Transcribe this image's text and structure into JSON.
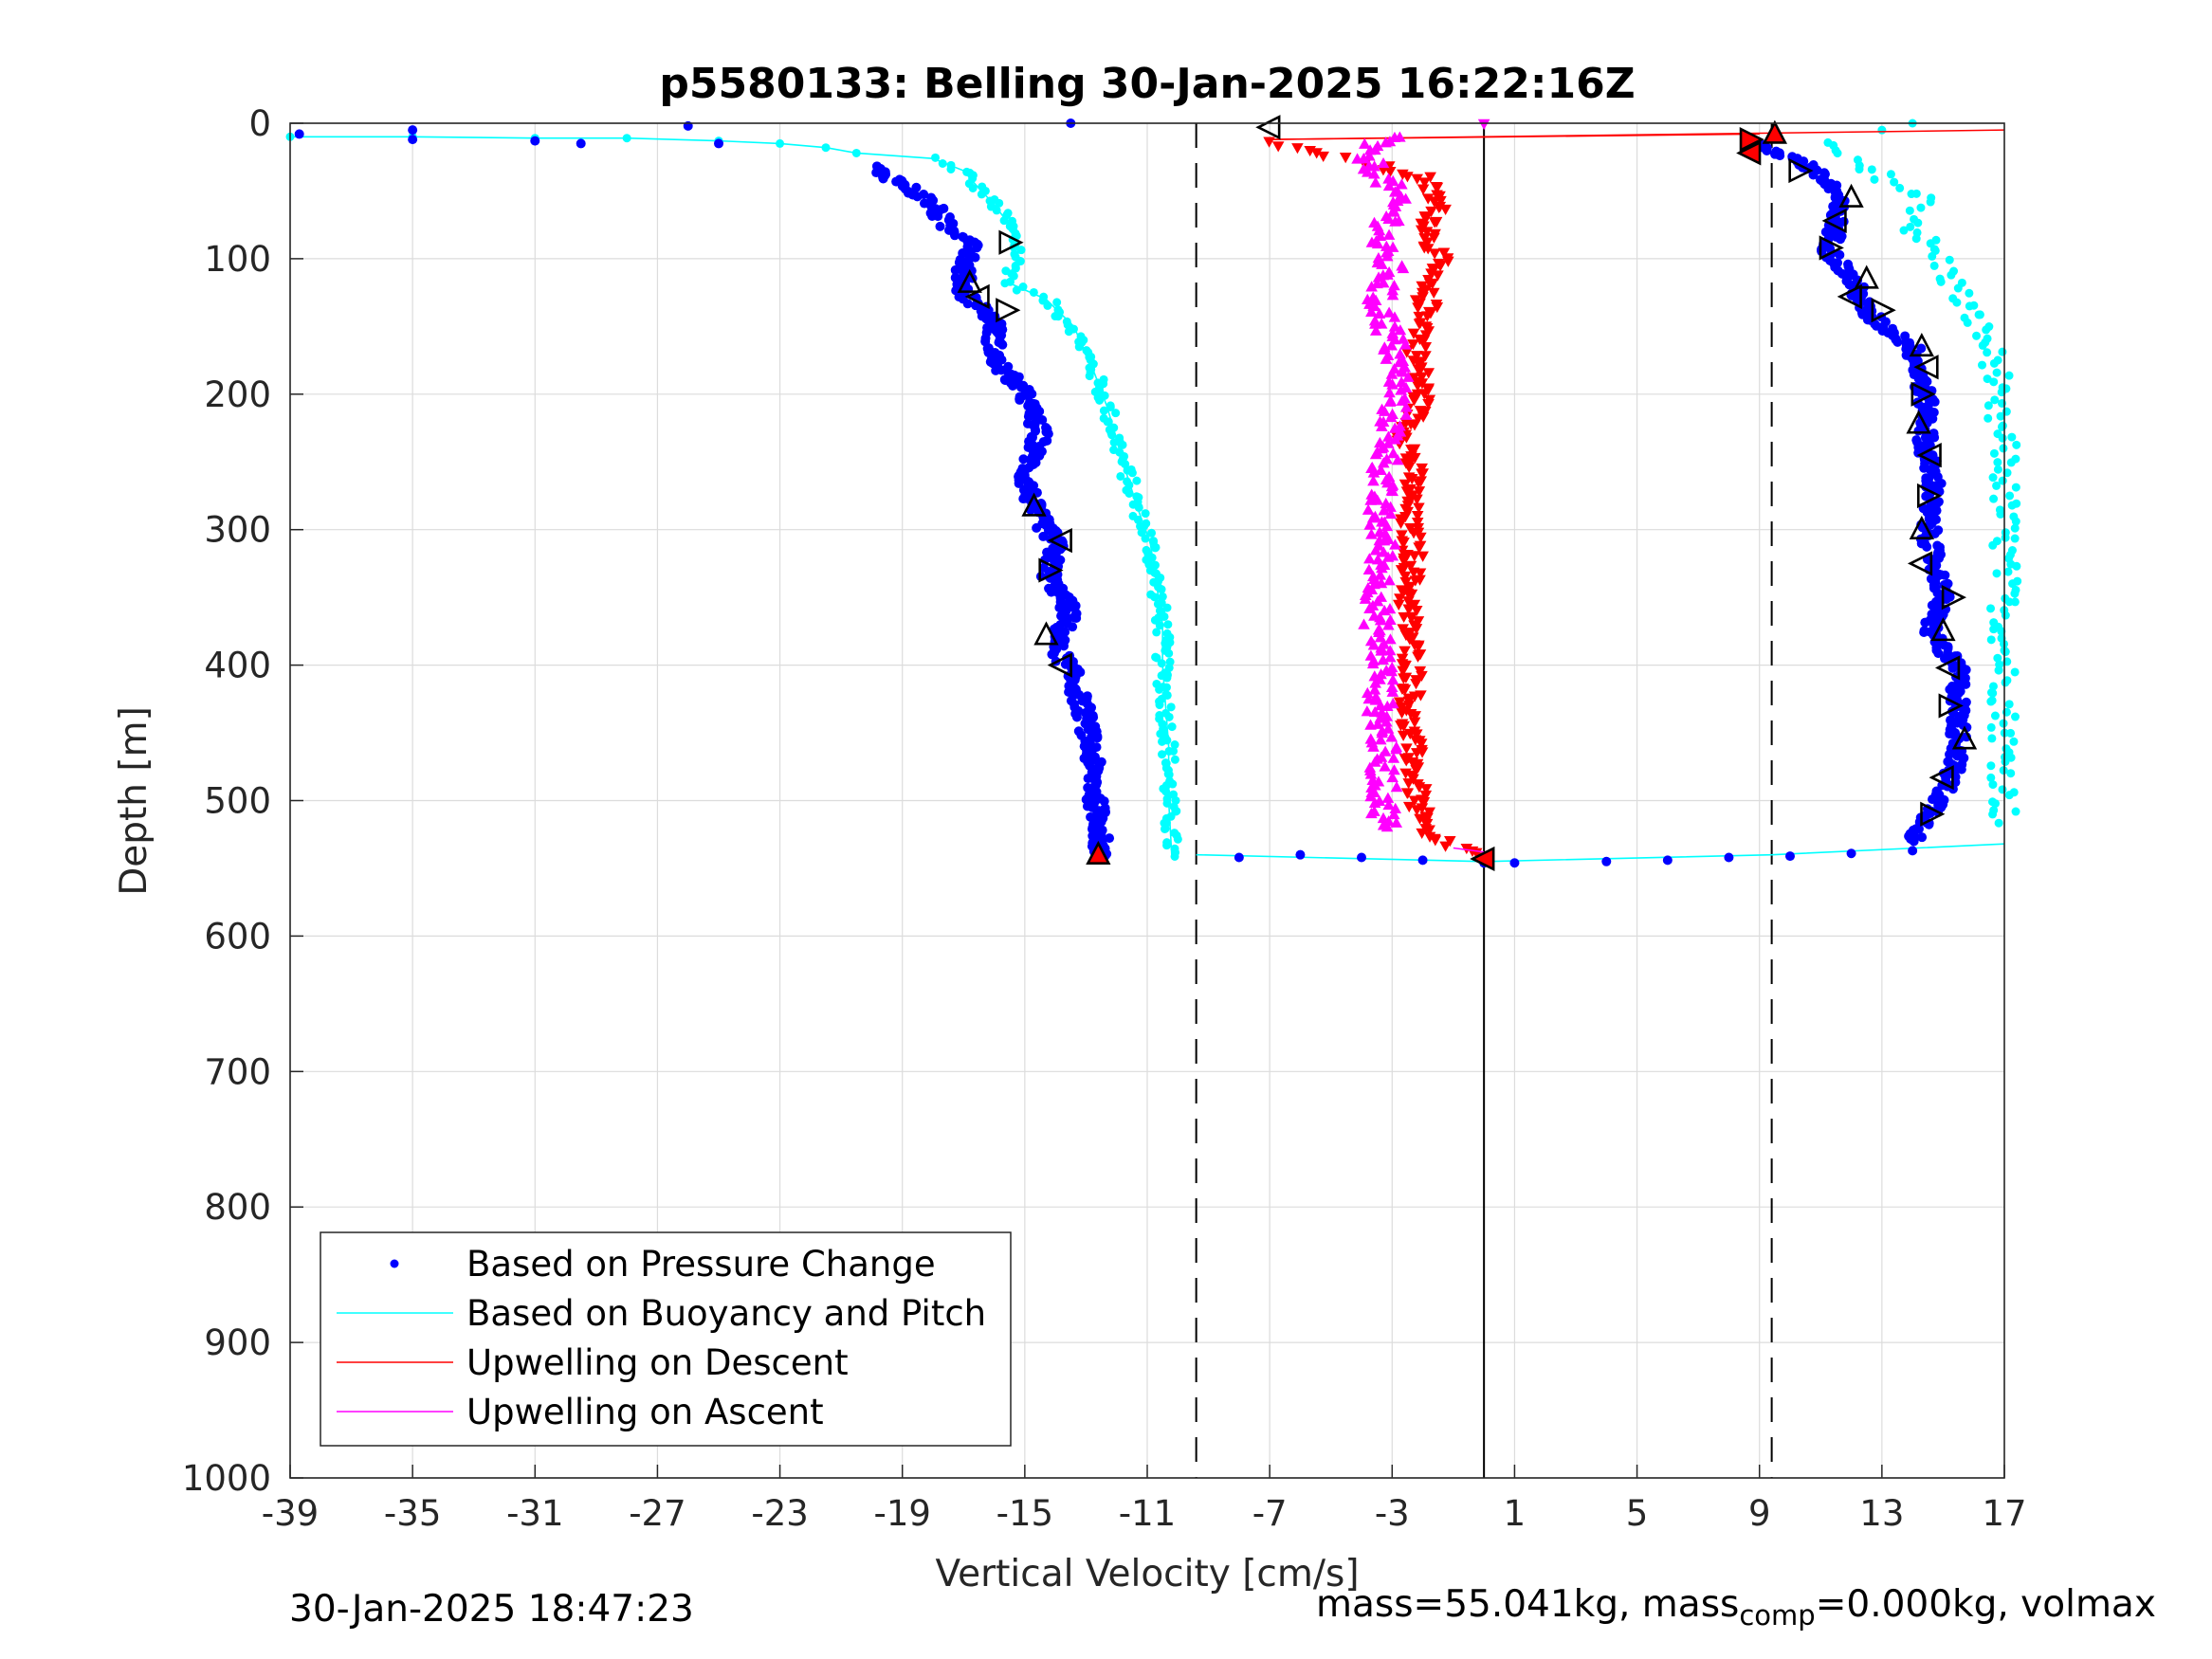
{
  "chart_data": {
    "type": "scatter",
    "title": "p5580133: Belling 30-Jan-2025 16:22:16Z",
    "xlabel": "Vertical Velocity [cm/s]",
    "ylabel": "Depth [m]",
    "xlim": [
      -39,
      17
    ],
    "ylim": [
      0,
      1000
    ],
    "y_reversed": true,
    "grid": true,
    "xticks": [
      "-39",
      "-35",
      "-31",
      "-27",
      "-23",
      "-19",
      "-15",
      "-11",
      "-7",
      "-3",
      "1",
      "5",
      "9",
      "13",
      "17"
    ],
    "yticks": [
      "0",
      "100",
      "200",
      "300",
      "400",
      "500",
      "600",
      "700",
      "800",
      "900",
      "1000"
    ],
    "legend_location": "bottom-left",
    "reference_lines": [
      {
        "style": "dashed",
        "x": -9.4
      },
      {
        "style": "solid",
        "x": 0
      },
      {
        "style": "dashed",
        "x": 9.4
      }
    ],
    "series": [
      {
        "name": "Based on Pressure Change",
        "color": "#0000ff",
        "marker": "dot",
        "descent": [
          [
            -20,
            32
          ],
          [
            -19,
            45
          ],
          [
            -18,
            60
          ],
          [
            -17.5,
            78
          ],
          [
            -16.5,
            88
          ],
          [
            -17,
            105
          ],
          [
            -17,
            125
          ],
          [
            -16,
            145
          ],
          [
            -16,
            175
          ],
          [
            -15,
            200
          ],
          [
            -14.5,
            230
          ],
          [
            -15,
            260
          ],
          [
            -14.7,
            285
          ],
          [
            -14,
            310
          ],
          [
            -14.2,
            335
          ],
          [
            -13.5,
            360
          ],
          [
            -14,
            385
          ],
          [
            -13.5,
            405
          ],
          [
            -13,
            440
          ],
          [
            -12.8,
            470
          ],
          [
            -12.7,
            500
          ],
          [
            -12.5,
            525
          ],
          [
            -12.6,
            540
          ]
        ],
        "ascent": [
          [
            9,
            15
          ],
          [
            10.5,
            30
          ],
          [
            11.5,
            50
          ],
          [
            11.5,
            75
          ],
          [
            11.3,
            95
          ],
          [
            12,
            115
          ],
          [
            12.5,
            140
          ],
          [
            14,
            165
          ],
          [
            14.3,
            190
          ],
          [
            14.5,
            215
          ],
          [
            14.4,
            240
          ],
          [
            14.7,
            265
          ],
          [
            14.5,
            290
          ],
          [
            14.6,
            315
          ],
          [
            15,
            345
          ],
          [
            14.6,
            375
          ],
          [
            15.5,
            405
          ],
          [
            15.5,
            435
          ],
          [
            15.5,
            465
          ],
          [
            15,
            495
          ],
          [
            14.5,
            515
          ],
          [
            14,
            530
          ]
        ],
        "surface_outliers": [
          [
            -38.7,
            8
          ],
          [
            -35,
            5
          ],
          [
            -35,
            12
          ],
          [
            -31,
            13
          ],
          [
            -29.5,
            15
          ],
          [
            -26,
            2
          ],
          [
            -25,
            15
          ],
          [
            -13.5,
            0
          ]
        ],
        "bottom_outliers": [
          [
            -8,
            542
          ],
          [
            -6,
            540
          ],
          [
            -4,
            542
          ],
          [
            -2,
            544
          ],
          [
            0,
            546
          ],
          [
            1,
            546
          ],
          [
            4,
            545
          ],
          [
            6,
            544
          ],
          [
            8,
            542
          ],
          [
            10,
            541
          ],
          [
            12,
            539
          ],
          [
            14,
            537
          ]
        ]
      },
      {
        "name": "Based on Buoyancy and Pitch",
        "color": "#00ffff",
        "marker": "line",
        "descent": [
          [
            -39,
            10
          ],
          [
            -35,
            10
          ],
          [
            -31,
            11
          ],
          [
            -28,
            11
          ],
          [
            -25,
            13
          ],
          [
            -23,
            15
          ],
          [
            -21.5,
            18
          ],
          [
            -20.5,
            22
          ],
          [
            -18,
            26
          ],
          [
            -17,
            35
          ],
          [
            -16.5,
            48
          ],
          [
            -16,
            60
          ],
          [
            -15.5,
            75
          ],
          [
            -15.2,
            95
          ],
          [
            -15.5,
            118
          ],
          [
            -14.3,
            130
          ],
          [
            -13.4,
            150
          ],
          [
            -12.8,
            180
          ],
          [
            -12.3,
            210
          ],
          [
            -11.8,
            250
          ],
          [
            -11.3,
            285
          ],
          [
            -10.9,
            310
          ],
          [
            -10.7,
            340
          ],
          [
            -10.5,
            370
          ],
          [
            -10.5,
            400
          ],
          [
            -10.4,
            430
          ],
          [
            -10.3,
            460
          ],
          [
            -10.3,
            500
          ],
          [
            -10.2,
            540
          ]
        ],
        "ascent": [
          [
            17,
            532
          ],
          [
            9.4,
            540
          ],
          [
            0,
            545
          ],
          [
            -9.4,
            540
          ],
          [
            11,
            15
          ],
          [
            12,
            30
          ],
          [
            13.5,
            45
          ],
          [
            14.5,
            60
          ],
          [
            14,
            75
          ],
          [
            14.5,
            90
          ],
          [
            15,
            105
          ],
          [
            15.5,
            125
          ],
          [
            16,
            145
          ],
          [
            16.5,
            165
          ],
          [
            16.8,
            185
          ],
          [
            16.5,
            200
          ],
          [
            17,
            240
          ],
          [
            17,
            295
          ],
          [
            17,
            515
          ],
          [
            14,
            0
          ],
          [
            13,
            5
          ]
        ]
      },
      {
        "name": "Upwelling on Descent",
        "color": "#ff0000",
        "marker": "triangle-down",
        "points": [
          [
            -7,
            14
          ],
          [
            -6,
            20
          ],
          [
            -4,
            28
          ],
          [
            -2,
            40
          ],
          [
            -1.5,
            60
          ],
          [
            -1.8,
            80
          ],
          [
            -1.5,
            100
          ],
          [
            -2,
            120
          ],
          [
            -1.8,
            140
          ],
          [
            -2.2,
            170
          ],
          [
            -2,
            200
          ],
          [
            -2.5,
            230
          ],
          [
            -2.3,
            260
          ],
          [
            -2.5,
            290
          ],
          [
            -2.3,
            320
          ],
          [
            -2.5,
            350
          ],
          [
            -2.4,
            380
          ],
          [
            -2.3,
            410
          ],
          [
            -2.5,
            440
          ],
          [
            -2.3,
            470
          ],
          [
            -2.2,
            500
          ],
          [
            -2,
            525
          ],
          [
            0,
            540
          ]
        ],
        "surface_lines": [
          [
            -7,
            12
          ],
          [
            17,
            5
          ],
          [
            9,
            8
          ]
        ]
      },
      {
        "name": "Upwelling on Ascent",
        "color": "#ff00ff",
        "marker": "triangle-up",
        "points": [
          [
            -3,
            10
          ],
          [
            -4,
            20
          ],
          [
            -3.5,
            35
          ],
          [
            -3,
            50
          ],
          [
            -3,
            70
          ],
          [
            -3.5,
            90
          ],
          [
            -3,
            110
          ],
          [
            -3.5,
            130
          ],
          [
            -3,
            160
          ],
          [
            -2.8,
            190
          ],
          [
            -3,
            220
          ],
          [
            -3.2,
            250
          ],
          [
            -3.5,
            280
          ],
          [
            -3.3,
            310
          ],
          [
            -3.4,
            340
          ],
          [
            -3.5,
            370
          ],
          [
            -3.3,
            400
          ],
          [
            -3.4,
            430
          ],
          [
            -3.3,
            460
          ],
          [
            -3.3,
            490
          ],
          [
            -3.2,
            520
          ],
          [
            -1,
            535
          ],
          [
            0,
            0
          ]
        ]
      },
      {
        "name": "",
        "color": "#000000",
        "marker": "open-triangle",
        "points": [
          [
            -7,
            3
          ],
          [
            -15.5,
            88
          ],
          [
            -16.8,
            118
          ],
          [
            -16.5,
            128
          ],
          [
            -15.6,
            138
          ],
          [
            -14.7,
            283
          ],
          [
            -13.8,
            308
          ],
          [
            -14.2,
            330
          ],
          [
            -14.3,
            378
          ],
          [
            -13.8,
            400
          ],
          [
            8.7,
            12
          ],
          [
            9.5,
            8
          ],
          [
            8.7,
            22
          ],
          [
            10.3,
            35
          ],
          [
            12,
            55
          ],
          [
            11.5,
            72
          ],
          [
            11.3,
            92
          ],
          [
            12.5,
            115
          ],
          [
            12,
            128
          ],
          [
            13,
            138
          ],
          [
            14.3,
            165
          ],
          [
            14.5,
            180
          ],
          [
            14.3,
            200
          ],
          [
            14.2,
            222
          ],
          [
            14.6,
            245
          ],
          [
            14.5,
            275
          ],
          [
            14.3,
            300
          ],
          [
            14.3,
            325
          ],
          [
            15.3,
            350
          ],
          [
            15,
            375
          ],
          [
            15.2,
            402
          ],
          [
            15.2,
            430
          ],
          [
            15.7,
            455
          ],
          [
            15,
            483
          ],
          [
            14.6,
            510
          ],
          [
            -12.6,
            540
          ],
          [
            0,
            543
          ]
        ]
      }
    ]
  },
  "footer": {
    "timestamp": "30-Jan-2025 18:47:23",
    "mass_text": "mass=55.041kg, mass",
    "mass_sub": "comp",
    "mass_text_2": "=0.000kg, volmax"
  }
}
